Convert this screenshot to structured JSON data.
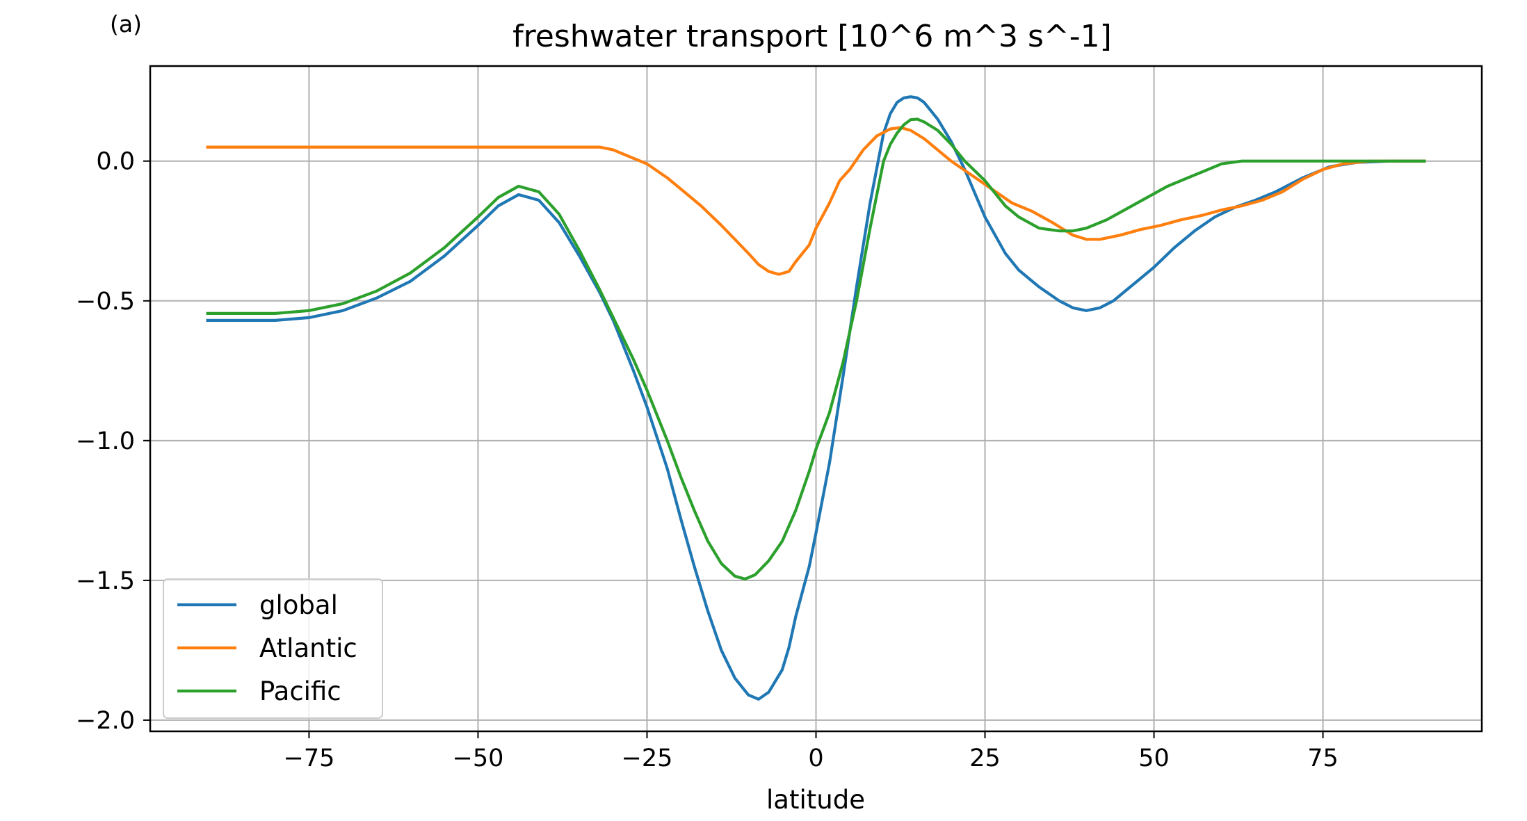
{
  "panel_label": "(a)",
  "chart_data": {
    "type": "line",
    "title": "freshwater transport [10^6 m^3 s^-1]",
    "xlabel": "latitude",
    "ylabel": "",
    "xlim": [
      -98.5,
      98.5
    ],
    "ylim": [
      -2.04,
      0.34
    ],
    "x_ticks": [
      -75,
      -50,
      -25,
      0,
      25,
      50,
      75
    ],
    "x_tick_labels": [
      "−75",
      "−50",
      "−25",
      "0",
      "25",
      "50",
      "75"
    ],
    "y_ticks": [
      0.0,
      -0.5,
      -1.0,
      -1.5,
      -2.0
    ],
    "y_tick_labels": [
      "0.0",
      "−0.5",
      "−1.0",
      "−1.5",
      "−2.0"
    ],
    "grid": true,
    "legend_position": "lower-left",
    "series": [
      {
        "name": "global",
        "color": "#1f77b4",
        "points": [
          [
            -90,
            -0.57
          ],
          [
            -80,
            -0.57
          ],
          [
            -75,
            -0.56
          ],
          [
            -70,
            -0.535
          ],
          [
            -65,
            -0.49
          ],
          [
            -60,
            -0.43
          ],
          [
            -55,
            -0.34
          ],
          [
            -50,
            -0.23
          ],
          [
            -47,
            -0.16
          ],
          [
            -44,
            -0.12
          ],
          [
            -41,
            -0.14
          ],
          [
            -38,
            -0.22
          ],
          [
            -35,
            -0.34
          ],
          [
            -32,
            -0.47
          ],
          [
            -30,
            -0.57
          ],
          [
            -27,
            -0.75
          ],
          [
            -25,
            -0.88
          ],
          [
            -22,
            -1.1
          ],
          [
            -20,
            -1.28
          ],
          [
            -18,
            -1.45
          ],
          [
            -16,
            -1.61
          ],
          [
            -14,
            -1.75
          ],
          [
            -12,
            -1.85
          ],
          [
            -10,
            -1.91
          ],
          [
            -8.5,
            -1.925
          ],
          [
            -7,
            -1.9
          ],
          [
            -5,
            -1.82
          ],
          [
            -4,
            -1.74
          ],
          [
            -3,
            -1.63
          ],
          [
            -1,
            -1.45
          ],
          [
            0,
            -1.33
          ],
          [
            2,
            -1.08
          ],
          [
            4,
            -0.77
          ],
          [
            6,
            -0.45
          ],
          [
            8,
            -0.15
          ],
          [
            10,
            0.1
          ],
          [
            11,
            0.17
          ],
          [
            12,
            0.21
          ],
          [
            13,
            0.226
          ],
          [
            14,
            0.23
          ],
          [
            15,
            0.226
          ],
          [
            16,
            0.21
          ],
          [
            18,
            0.15
          ],
          [
            20,
            0.07
          ],
          [
            22,
            -0.03
          ],
          [
            25,
            -0.2
          ],
          [
            28,
            -0.33
          ],
          [
            30,
            -0.39
          ],
          [
            33,
            -0.45
          ],
          [
            36,
            -0.5
          ],
          [
            38,
            -0.525
          ],
          [
            40,
            -0.535
          ],
          [
            42,
            -0.525
          ],
          [
            44,
            -0.5
          ],
          [
            47,
            -0.44
          ],
          [
            50,
            -0.38
          ],
          [
            53,
            -0.31
          ],
          [
            56,
            -0.25
          ],
          [
            59,
            -0.2
          ],
          [
            62,
            -0.165
          ],
          [
            65,
            -0.14
          ],
          [
            68,
            -0.11
          ],
          [
            72,
            -0.06
          ],
          [
            76,
            -0.02
          ],
          [
            80,
            -0.005
          ],
          [
            85,
            0.0
          ],
          [
            90,
            0.0
          ]
        ]
      },
      {
        "name": "Atlantic",
        "color": "#ff7f0e",
        "points": [
          [
            -90,
            0.05
          ],
          [
            -35,
            0.05
          ],
          [
            -32,
            0.05
          ],
          [
            -30,
            0.04
          ],
          [
            -28,
            0.02
          ],
          [
            -25,
            -0.01
          ],
          [
            -22,
            -0.06
          ],
          [
            -20,
            -0.1
          ],
          [
            -17,
            -0.16
          ],
          [
            -14,
            -0.23
          ],
          [
            -12,
            -0.28
          ],
          [
            -10,
            -0.33
          ],
          [
            -8.5,
            -0.37
          ],
          [
            -7,
            -0.395
          ],
          [
            -5.5,
            -0.405
          ],
          [
            -4,
            -0.395
          ],
          [
            -3,
            -0.36
          ],
          [
            -1,
            -0.3
          ],
          [
            0,
            -0.24
          ],
          [
            2,
            -0.15
          ],
          [
            3.5,
            -0.07
          ],
          [
            5,
            -0.03
          ],
          [
            7,
            0.04
          ],
          [
            9,
            0.09
          ],
          [
            11,
            0.115
          ],
          [
            12.5,
            0.12
          ],
          [
            14,
            0.11
          ],
          [
            16,
            0.08
          ],
          [
            18,
            0.04
          ],
          [
            20,
            0.0
          ],
          [
            23,
            -0.05
          ],
          [
            26,
            -0.1
          ],
          [
            29,
            -0.15
          ],
          [
            32,
            -0.18
          ],
          [
            35,
            -0.22
          ],
          [
            38,
            -0.265
          ],
          [
            40,
            -0.28
          ],
          [
            42,
            -0.28
          ],
          [
            45,
            -0.265
          ],
          [
            48,
            -0.245
          ],
          [
            51,
            -0.23
          ],
          [
            54,
            -0.21
          ],
          [
            57,
            -0.195
          ],
          [
            60,
            -0.175
          ],
          [
            63,
            -0.16
          ],
          [
            66,
            -0.14
          ],
          [
            69,
            -0.11
          ],
          [
            72,
            -0.065
          ],
          [
            75,
            -0.03
          ],
          [
            78,
            -0.01
          ],
          [
            82,
            0.0
          ],
          [
            90,
            0.0
          ]
        ]
      },
      {
        "name": "Pacific",
        "color": "#2ca02c",
        "points": [
          [
            -90,
            -0.545
          ],
          [
            -80,
            -0.545
          ],
          [
            -75,
            -0.535
          ],
          [
            -70,
            -0.51
          ],
          [
            -65,
            -0.465
          ],
          [
            -60,
            -0.4
          ],
          [
            -55,
            -0.31
          ],
          [
            -50,
            -0.2
          ],
          [
            -47,
            -0.13
          ],
          [
            -44,
            -0.09
          ],
          [
            -41,
            -0.11
          ],
          [
            -38,
            -0.19
          ],
          [
            -35,
            -0.32
          ],
          [
            -32,
            -0.46
          ],
          [
            -30,
            -0.56
          ],
          [
            -27,
            -0.71
          ],
          [
            -25,
            -0.82
          ],
          [
            -22,
            -1.0
          ],
          [
            -20,
            -1.13
          ],
          [
            -18,
            -1.25
          ],
          [
            -16,
            -1.36
          ],
          [
            -14,
            -1.44
          ],
          [
            -12,
            -1.485
          ],
          [
            -10.5,
            -1.495
          ],
          [
            -9,
            -1.48
          ],
          [
            -7,
            -1.43
          ],
          [
            -5,
            -1.36
          ],
          [
            -3,
            -1.25
          ],
          [
            -1,
            -1.11
          ],
          [
            0,
            -1.03
          ],
          [
            2,
            -0.9
          ],
          [
            4,
            -0.72
          ],
          [
            6,
            -0.5
          ],
          [
            8,
            -0.24
          ],
          [
            10,
            0.0
          ],
          [
            11,
            0.06
          ],
          [
            12,
            0.1
          ],
          [
            13,
            0.13
          ],
          [
            14,
            0.148
          ],
          [
            15,
            0.15
          ],
          [
            16,
            0.14
          ],
          [
            18,
            0.11
          ],
          [
            20,
            0.06
          ],
          [
            22,
            0.0
          ],
          [
            25,
            -0.07
          ],
          [
            28,
            -0.16
          ],
          [
            30,
            -0.2
          ],
          [
            33,
            -0.24
          ],
          [
            36,
            -0.25
          ],
          [
            38,
            -0.25
          ],
          [
            40,
            -0.24
          ],
          [
            43,
            -0.21
          ],
          [
            46,
            -0.17
          ],
          [
            49,
            -0.13
          ],
          [
            52,
            -0.09
          ],
          [
            55,
            -0.06
          ],
          [
            58,
            -0.03
          ],
          [
            60,
            -0.01
          ],
          [
            63,
            0.0
          ],
          [
            65,
            0.0
          ],
          [
            90,
            0.0
          ]
        ]
      }
    ]
  }
}
